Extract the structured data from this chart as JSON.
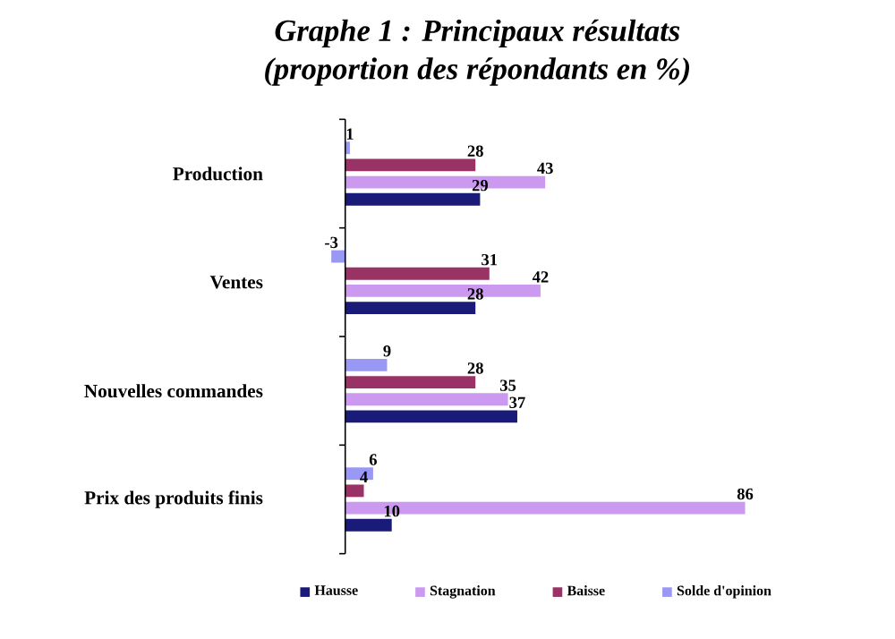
{
  "chart_data": {
    "type": "bar",
    "orientation": "horizontal",
    "title": "Graphe 1 : Principaux résultats",
    "subtitle": "(proportion des répondants en %)",
    "categories": [
      "Production",
      "Ventes",
      "Nouvelles commandes",
      "Prix des produits finis"
    ],
    "series": [
      {
        "name": "Hausse",
        "color": "#1a1a78",
        "values": [
          29,
          28,
          37,
          10
        ]
      },
      {
        "name": "Stagnation",
        "color": "#cc99f0",
        "values": [
          43,
          42,
          35,
          86
        ]
      },
      {
        "name": "Baisse",
        "color": "#993366",
        "values": [
          28,
          31,
          28,
          4
        ]
      },
      {
        "name": "Solde d'opinion",
        "color": "#9999f5",
        "values": [
          1,
          -3,
          9,
          6
        ]
      }
    ],
    "data_labels": true,
    "legend": "bottom",
    "tick_labels": "y"
  }
}
